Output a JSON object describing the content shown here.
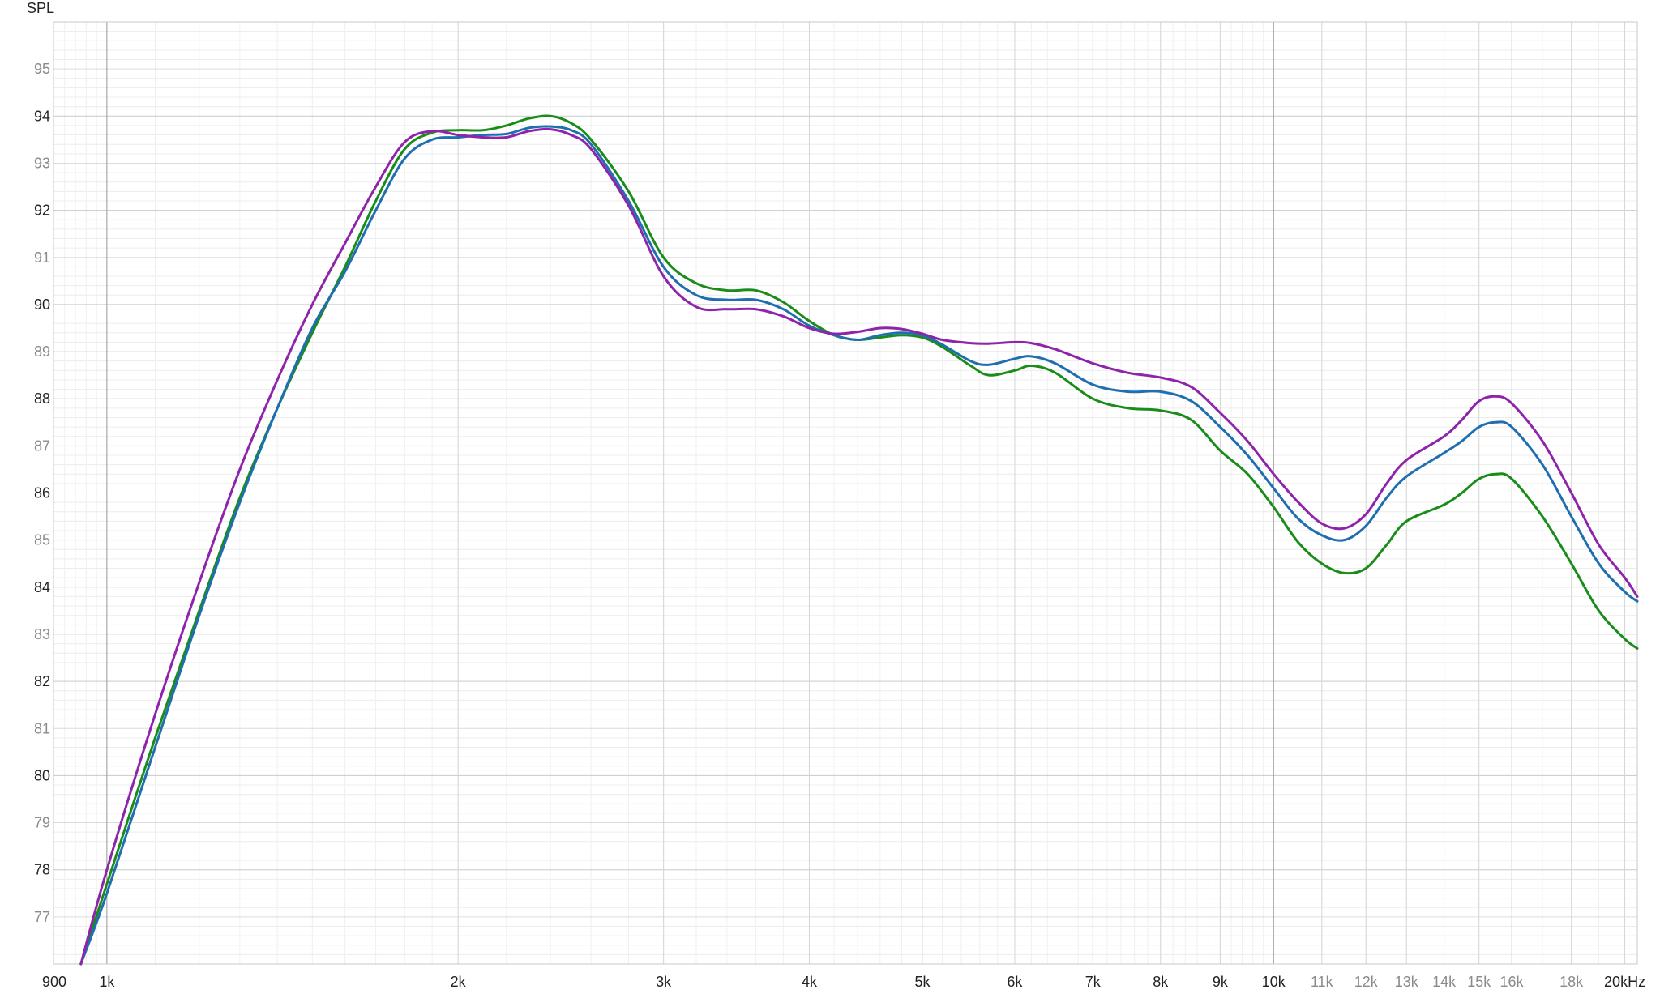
{
  "chart_data": {
    "type": "line",
    "title": "",
    "ylabel": "SPL",
    "xlabel": "",
    "x_scale": "log",
    "xlim": [
      900,
      20500
    ],
    "ylim": [
      76,
      96
    ],
    "grid": true,
    "x_ticks": [
      {
        "value": 900,
        "label": "900",
        "major": true
      },
      {
        "value": 1000,
        "label": "1k",
        "major": true
      },
      {
        "value": 2000,
        "label": "2k",
        "major": true
      },
      {
        "value": 3000,
        "label": "3k",
        "major": true
      },
      {
        "value": 4000,
        "label": "4k",
        "major": true
      },
      {
        "value": 5000,
        "label": "5k",
        "major": true
      },
      {
        "value": 6000,
        "label": "6k",
        "major": true
      },
      {
        "value": 7000,
        "label": "7k",
        "major": true
      },
      {
        "value": 8000,
        "label": "8k",
        "major": true
      },
      {
        "value": 9000,
        "label": "9k",
        "major": true
      },
      {
        "value": 10000,
        "label": "10k",
        "major": true
      },
      {
        "value": 11000,
        "label": "11k",
        "major": false
      },
      {
        "value": 12000,
        "label": "12k",
        "major": false
      },
      {
        "value": 13000,
        "label": "13k",
        "major": false
      },
      {
        "value": 14000,
        "label": "14k",
        "major": false
      },
      {
        "value": 15000,
        "label": "15k",
        "major": false
      },
      {
        "value": 16000,
        "label": "16k",
        "major": false
      },
      {
        "value": 18000,
        "label": "18k",
        "major": false
      },
      {
        "value": 20000,
        "label": "20kHz",
        "major": true
      }
    ],
    "y_ticks": [
      {
        "value": 77,
        "label": "77",
        "major": false
      },
      {
        "value": 78,
        "label": "78",
        "major": true
      },
      {
        "value": 79,
        "label": "79",
        "major": false
      },
      {
        "value": 80,
        "label": "80",
        "major": true
      },
      {
        "value": 81,
        "label": "81",
        "major": false
      },
      {
        "value": 82,
        "label": "82",
        "major": true
      },
      {
        "value": 83,
        "label": "83",
        "major": false
      },
      {
        "value": 84,
        "label": "84",
        "major": true
      },
      {
        "value": 85,
        "label": "85",
        "major": false
      },
      {
        "value": 86,
        "label": "86",
        "major": true
      },
      {
        "value": 87,
        "label": "87",
        "major": false
      },
      {
        "value": 88,
        "label": "88",
        "major": true
      },
      {
        "value": 89,
        "label": "89",
        "major": false
      },
      {
        "value": 90,
        "label": "90",
        "major": true
      },
      {
        "value": 91,
        "label": "91",
        "major": false
      },
      {
        "value": 92,
        "label": "92",
        "major": true
      },
      {
        "value": 93,
        "label": "93",
        "major": false
      },
      {
        "value": 94,
        "label": "94",
        "major": true
      },
      {
        "value": 95,
        "label": "95",
        "major": false
      }
    ],
    "series": [
      {
        "color": "#1a8c1a",
        "points": [
          [
            950,
            76.0
          ],
          [
            1000,
            77.7
          ],
          [
            1100,
            80.8
          ],
          [
            1200,
            83.5
          ],
          [
            1300,
            85.9
          ],
          [
            1400,
            87.8
          ],
          [
            1500,
            89.4
          ],
          [
            1600,
            90.8
          ],
          [
            1700,
            92.2
          ],
          [
            1800,
            93.3
          ],
          [
            1900,
            93.65
          ],
          [
            2000,
            93.7
          ],
          [
            2100,
            93.7
          ],
          [
            2200,
            93.8
          ],
          [
            2300,
            93.95
          ],
          [
            2400,
            94.0
          ],
          [
            2500,
            93.85
          ],
          [
            2600,
            93.5
          ],
          [
            2800,
            92.4
          ],
          [
            3000,
            91.0
          ],
          [
            3200,
            90.45
          ],
          [
            3400,
            90.3
          ],
          [
            3600,
            90.3
          ],
          [
            3800,
            90.05
          ],
          [
            4000,
            89.65
          ],
          [
            4200,
            89.35
          ],
          [
            4400,
            89.25
          ],
          [
            4600,
            89.3
          ],
          [
            4800,
            89.35
          ],
          [
            5000,
            89.3
          ],
          [
            5200,
            89.1
          ],
          [
            5500,
            88.7
          ],
          [
            5700,
            88.5
          ],
          [
            6000,
            88.6
          ],
          [
            6200,
            88.7
          ],
          [
            6500,
            88.55
          ],
          [
            7000,
            88.0
          ],
          [
            7500,
            87.8
          ],
          [
            8000,
            87.75
          ],
          [
            8500,
            87.55
          ],
          [
            9000,
            86.9
          ],
          [
            9500,
            86.4
          ],
          [
            10000,
            85.7
          ],
          [
            10500,
            84.95
          ],
          [
            11000,
            84.5
          ],
          [
            11500,
            84.3
          ],
          [
            12000,
            84.4
          ],
          [
            12500,
            84.9
          ],
          [
            13000,
            85.4
          ],
          [
            14000,
            85.75
          ],
          [
            14500,
            86.0
          ],
          [
            15000,
            86.3
          ],
          [
            15500,
            86.4
          ],
          [
            16000,
            86.3
          ],
          [
            17000,
            85.5
          ],
          [
            18000,
            84.5
          ],
          [
            19000,
            83.5
          ],
          [
            20000,
            82.9
          ],
          [
            20500,
            82.7
          ]
        ]
      },
      {
        "color": "#1f6fb0",
        "points": [
          [
            950,
            76.0
          ],
          [
            1000,
            77.5
          ],
          [
            1100,
            80.6
          ],
          [
            1200,
            83.4
          ],
          [
            1300,
            85.8
          ],
          [
            1400,
            87.8
          ],
          [
            1500,
            89.5
          ],
          [
            1600,
            90.7
          ],
          [
            1700,
            92.0
          ],
          [
            1800,
            93.1
          ],
          [
            1900,
            93.5
          ],
          [
            2000,
            93.55
          ],
          [
            2100,
            93.6
          ],
          [
            2200,
            93.62
          ],
          [
            2300,
            93.75
          ],
          [
            2400,
            93.78
          ],
          [
            2500,
            93.7
          ],
          [
            2600,
            93.4
          ],
          [
            2800,
            92.2
          ],
          [
            3000,
            90.8
          ],
          [
            3200,
            90.2
          ],
          [
            3400,
            90.1
          ],
          [
            3600,
            90.1
          ],
          [
            3800,
            89.9
          ],
          [
            4000,
            89.55
          ],
          [
            4200,
            89.35
          ],
          [
            4400,
            89.25
          ],
          [
            4600,
            89.35
          ],
          [
            4800,
            89.4
          ],
          [
            5000,
            89.35
          ],
          [
            5200,
            89.15
          ],
          [
            5500,
            88.8
          ],
          [
            5700,
            88.72
          ],
          [
            6000,
            88.85
          ],
          [
            6200,
            88.9
          ],
          [
            6500,
            88.75
          ],
          [
            7000,
            88.3
          ],
          [
            7500,
            88.15
          ],
          [
            8000,
            88.15
          ],
          [
            8500,
            87.95
          ],
          [
            9000,
            87.4
          ],
          [
            9500,
            86.8
          ],
          [
            10000,
            86.1
          ],
          [
            10500,
            85.45
          ],
          [
            11000,
            85.1
          ],
          [
            11500,
            85.0
          ],
          [
            12000,
            85.3
          ],
          [
            12500,
            85.9
          ],
          [
            13000,
            86.35
          ],
          [
            14000,
            86.85
          ],
          [
            14500,
            87.1
          ],
          [
            15000,
            87.4
          ],
          [
            15500,
            87.5
          ],
          [
            16000,
            87.4
          ],
          [
            17000,
            86.6
          ],
          [
            18000,
            85.5
          ],
          [
            19000,
            84.5
          ],
          [
            20000,
            83.9
          ],
          [
            20500,
            83.7
          ]
        ]
      },
      {
        "color": "#8e24aa",
        "points": [
          [
            950,
            76.0
          ],
          [
            1000,
            78.0
          ],
          [
            1100,
            81.3
          ],
          [
            1200,
            84.1
          ],
          [
            1300,
            86.5
          ],
          [
            1400,
            88.4
          ],
          [
            1500,
            90.0
          ],
          [
            1600,
            91.3
          ],
          [
            1700,
            92.5
          ],
          [
            1800,
            93.45
          ],
          [
            1900,
            93.68
          ],
          [
            2000,
            93.6
          ],
          [
            2100,
            93.55
          ],
          [
            2200,
            93.55
          ],
          [
            2300,
            93.68
          ],
          [
            2400,
            93.72
          ],
          [
            2500,
            93.6
          ],
          [
            2600,
            93.3
          ],
          [
            2800,
            92.1
          ],
          [
            3000,
            90.6
          ],
          [
            3200,
            89.95
          ],
          [
            3400,
            89.9
          ],
          [
            3600,
            89.9
          ],
          [
            3800,
            89.75
          ],
          [
            4000,
            89.5
          ],
          [
            4200,
            89.38
          ],
          [
            4400,
            89.42
          ],
          [
            4600,
            89.5
          ],
          [
            4800,
            89.48
          ],
          [
            5000,
            89.38
          ],
          [
            5200,
            89.25
          ],
          [
            5500,
            89.18
          ],
          [
            5700,
            89.17
          ],
          [
            6000,
            89.2
          ],
          [
            6200,
            89.18
          ],
          [
            6500,
            89.05
          ],
          [
            7000,
            88.75
          ],
          [
            7500,
            88.55
          ],
          [
            8000,
            88.45
          ],
          [
            8500,
            88.25
          ],
          [
            9000,
            87.7
          ],
          [
            9500,
            87.1
          ],
          [
            10000,
            86.4
          ],
          [
            10500,
            85.8
          ],
          [
            11000,
            85.35
          ],
          [
            11500,
            85.25
          ],
          [
            12000,
            85.55
          ],
          [
            12500,
            86.2
          ],
          [
            13000,
            86.7
          ],
          [
            14000,
            87.2
          ],
          [
            14500,
            87.55
          ],
          [
            15000,
            87.95
          ],
          [
            15500,
            88.05
          ],
          [
            16000,
            87.9
          ],
          [
            17000,
            87.1
          ],
          [
            18000,
            86.0
          ],
          [
            19000,
            84.9
          ],
          [
            20000,
            84.2
          ],
          [
            20500,
            83.8
          ]
        ]
      }
    ]
  }
}
